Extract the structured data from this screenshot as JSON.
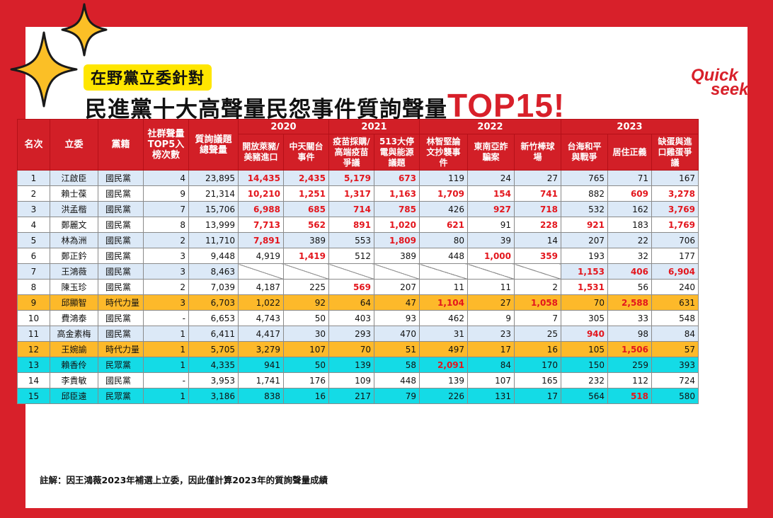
{
  "title": {
    "tag": "在野黨立委針對",
    "headline": "民進黨十大高聲量民怨事件質詢聲量",
    "headline_emphasis": "TOP15!"
  },
  "logo": {
    "line1": "Quick",
    "line2": "seek",
    "color": "#d8202a"
  },
  "footnote": "註解：因王鴻薇2023年補選上立委，因此僅計算2023年的質詢聲量成績",
  "colors": {
    "brand_red": "#d8202a",
    "header_red": "#d21f27",
    "highlight_text": "#e3161d",
    "tag_yellow": "#ffe600",
    "kmt_row": "#dce9f7",
    "npp_row": "#fdb92a",
    "tpp_row": "#14dbe6"
  },
  "chart_data": {
    "type": "table",
    "columns": {
      "rank": "名次",
      "legislator": "立委",
      "party": "黨籍",
      "top5_count": "社群聲量TOP5入榜次數",
      "total_volume": "質詢議題總聲量"
    },
    "year_groups": [
      {
        "year": "2020",
        "issues": [
          "開放萊豬/美豬進口",
          "中天關台事件"
        ]
      },
      {
        "year": "2021",
        "issues": [
          "疫苗採購/高端疫苗爭議",
          "513大停電與能源議題"
        ]
      },
      {
        "year": "2022",
        "issues": [
          "林智堅論文抄襲事件",
          "東南亞詐騙案",
          "新竹棒球場"
        ]
      },
      {
        "year": "2023",
        "issues": [
          "台海和平與戰爭",
          "居住正義",
          "缺蛋與進口雞蛋爭議"
        ]
      }
    ],
    "rows": [
      {
        "rank": "1",
        "legislator": "江啟臣",
        "party": "國民黨",
        "top5": "4",
        "total": "23,895",
        "values": [
          "14,435",
          "2,435",
          "5,179",
          "673",
          "119",
          "24",
          "27",
          "765",
          "71",
          "167"
        ],
        "highlighted": [
          0,
          1,
          2,
          3
        ]
      },
      {
        "rank": "2",
        "legislator": "賴士葆",
        "party": "國民黨",
        "top5": "9",
        "total": "21,314",
        "values": [
          "10,210",
          "1,251",
          "1,317",
          "1,163",
          "1,709",
          "154",
          "741",
          "882",
          "609",
          "3,278"
        ],
        "highlighted": [
          0,
          1,
          2,
          3,
          4,
          5,
          6,
          8,
          9
        ]
      },
      {
        "rank": "3",
        "legislator": "洪孟楷",
        "party": "國民黨",
        "top5": "7",
        "total": "15,706",
        "values": [
          "6,988",
          "685",
          "714",
          "785",
          "426",
          "927",
          "718",
          "532",
          "162",
          "3,769"
        ],
        "highlighted": [
          0,
          1,
          2,
          3,
          5,
          6,
          9
        ]
      },
      {
        "rank": "4",
        "legislator": "鄭麗文",
        "party": "國民黨",
        "top5": "8",
        "total": "13,999",
        "values": [
          "7,713",
          "562",
          "891",
          "1,020",
          "621",
          "91",
          "228",
          "921",
          "183",
          "1,769"
        ],
        "highlighted": [
          0,
          1,
          2,
          3,
          4,
          6,
          7,
          9
        ]
      },
      {
        "rank": "5",
        "legislator": "林為洲",
        "party": "國民黨",
        "top5": "2",
        "total": "11,710",
        "values": [
          "7,891",
          "389",
          "553",
          "1,809",
          "80",
          "39",
          "14",
          "207",
          "22",
          "706"
        ],
        "highlighted": [
          0,
          3
        ]
      },
      {
        "rank": "6",
        "legislator": "鄭正鈐",
        "party": "國民黨",
        "top5": "3",
        "total": "9,448",
        "values": [
          "4,919",
          "1,419",
          "512",
          "389",
          "448",
          "1,000",
          "359",
          "193",
          "32",
          "177"
        ],
        "highlighted": [
          1,
          5,
          6
        ]
      },
      {
        "rank": "7",
        "legislator": "王鴻薇",
        "party": "國民黨",
        "top5": "3",
        "total": "8,463",
        "values": [
          "",
          "",
          "",
          "",
          "",
          "",
          "",
          "1,153",
          "406",
          "6,904"
        ],
        "highlighted": [
          7,
          8,
          9
        ],
        "not_applicable": [
          0,
          1,
          2,
          3,
          4,
          5,
          6
        ]
      },
      {
        "rank": "8",
        "legislator": "陳玉珍",
        "party": "國民黨",
        "top5": "2",
        "total": "7,039",
        "values": [
          "4,187",
          "225",
          "569",
          "207",
          "11",
          "11",
          "2",
          "1,531",
          "56",
          "240"
        ],
        "highlighted": [
          2,
          7
        ]
      },
      {
        "rank": "9",
        "legislator": "邱顯智",
        "party": "時代力量",
        "top5": "3",
        "total": "6,703",
        "values": [
          "1,022",
          "92",
          "64",
          "47",
          "1,104",
          "27",
          "1,058",
          "70",
          "2,588",
          "631"
        ],
        "highlighted": [
          4,
          6,
          8
        ]
      },
      {
        "rank": "10",
        "legislator": "費鴻泰",
        "party": "國民黨",
        "top5": "-",
        "total": "6,653",
        "values": [
          "4,743",
          "50",
          "403",
          "93",
          "462",
          "9",
          "7",
          "305",
          "33",
          "548"
        ],
        "highlighted": []
      },
      {
        "rank": "11",
        "legislator": "高金素梅",
        "party": "國民黨",
        "top5": "1",
        "total": "6,411",
        "values": [
          "4,417",
          "30",
          "293",
          "470",
          "31",
          "23",
          "25",
          "940",
          "98",
          "84"
        ],
        "highlighted": [
          7
        ]
      },
      {
        "rank": "12",
        "legislator": "王婉諭",
        "party": "時代力量",
        "top5": "1",
        "total": "5,705",
        "values": [
          "3,279",
          "107",
          "70",
          "51",
          "497",
          "17",
          "16",
          "105",
          "1,506",
          "57"
        ],
        "highlighted": [
          8
        ]
      },
      {
        "rank": "13",
        "legislator": "賴香伶",
        "party": "民眾黨",
        "top5": "1",
        "total": "4,335",
        "values": [
          "941",
          "50",
          "139",
          "58",
          "2,091",
          "84",
          "170",
          "150",
          "259",
          "393"
        ],
        "highlighted": [
          4
        ]
      },
      {
        "rank": "14",
        "legislator": "李貴敏",
        "party": "國民黨",
        "top5": "-",
        "total": "3,953",
        "values": [
          "1,741",
          "176",
          "109",
          "448",
          "139",
          "107",
          "165",
          "232",
          "112",
          "724"
        ],
        "highlighted": []
      },
      {
        "rank": "15",
        "legislator": "邱臣遠",
        "party": "民眾黨",
        "top5": "1",
        "total": "3,186",
        "values": [
          "838",
          "16",
          "217",
          "79",
          "226",
          "131",
          "17",
          "564",
          "518",
          "580"
        ],
        "highlighted": [
          8
        ]
      }
    ]
  }
}
